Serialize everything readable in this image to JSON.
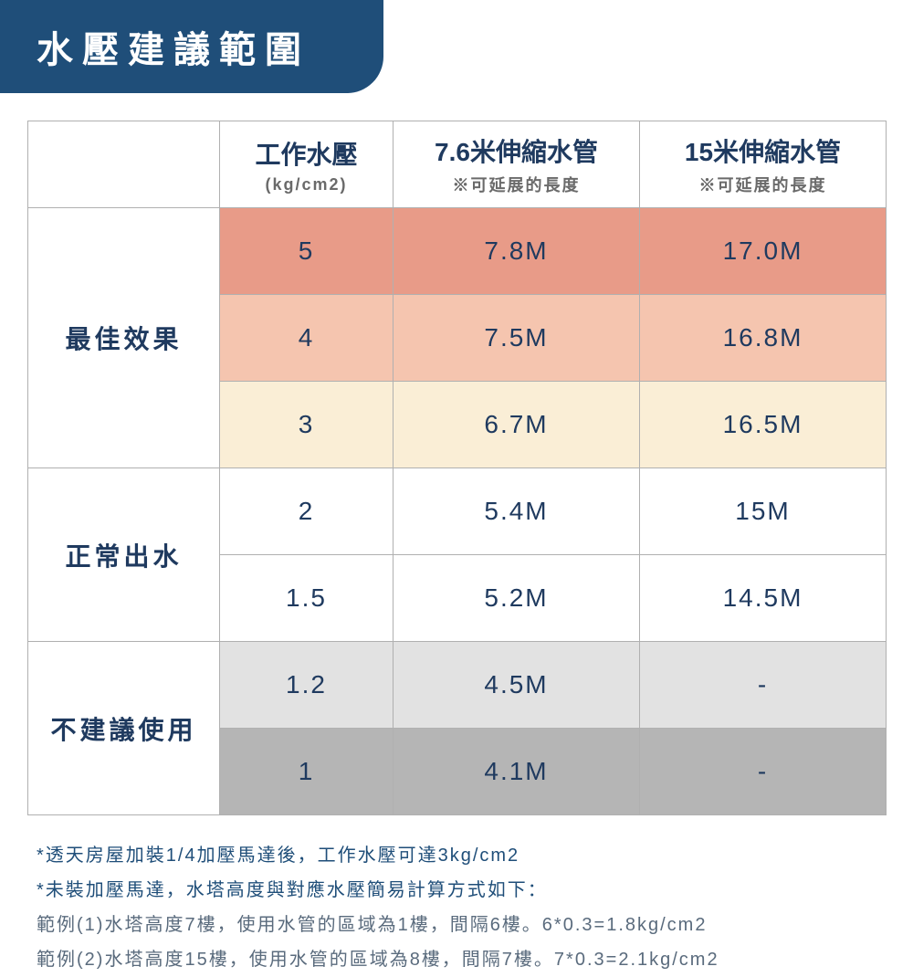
{
  "title": "水壓建議範圍",
  "headers": {
    "col1_main": "工作水壓",
    "col1_sub": "(kg/cm2)",
    "col2_main": "7.6米伸縮水管",
    "col2_sub": "※可延展的長度",
    "col3_main": "15米伸縮水管",
    "col3_sub": "※可延展的長度"
  },
  "groups": [
    {
      "label": "最佳效果",
      "rowspan": 3,
      "bg_label": "#ffffff",
      "rows": [
        {
          "bg": "bg-r1",
          "pressure": "5",
          "len76": "7.8M",
          "len15": "17.0M"
        },
        {
          "bg": "bg-r2",
          "pressure": "4",
          "len76": "7.5M",
          "len15": "16.8M"
        },
        {
          "bg": "bg-r3",
          "pressure": "3",
          "len76": "6.7M",
          "len15": "16.5M"
        }
      ]
    },
    {
      "label": "正常出水",
      "rowspan": 2,
      "bg_label": "#ffffff",
      "rows": [
        {
          "bg": "bg-r4",
          "pressure": "2",
          "len76": "5.4M",
          "len15": "15M"
        },
        {
          "bg": "bg-r5",
          "pressure": "1.5",
          "len76": "5.2M",
          "len15": "14.5M"
        }
      ]
    },
    {
      "label": "不建議使用",
      "rowspan": 2,
      "bg_label": "#ffffff",
      "rows": [
        {
          "bg": "bg-r6",
          "pressure": "1.2",
          "len76": "4.5M",
          "len15": "-"
        },
        {
          "bg": "bg-r7",
          "pressure": "1",
          "len76": "4.1M",
          "len15": "-"
        }
      ]
    }
  ],
  "notes": {
    "n1": "*透天房屋加裝1/4加壓馬達後，工作水壓可達3kg/cm2",
    "n2": "*未裝加壓馬達，水塔高度與對應水壓簡易計算方式如下：",
    "ex1": "範例(1)水塔高度7樓，使用水管的區域為1樓，間隔6樓。6*0.3=1.8kg/cm2",
    "ex2": "範例(2)水塔高度15樓，使用水管的區域為8樓，間隔7樓。7*0.3=2.1kg/cm2"
  },
  "styling": {
    "title_bg": "#1f4e79",
    "title_color": "#ffffff",
    "border_color": "#b0b0b0",
    "text_color": "#1f3a5f",
    "row_colors": [
      "#e89b88",
      "#f5c5af",
      "#faeed6",
      "#ffffff",
      "#ffffff",
      "#e2e2e2",
      "#b5b5b5"
    ],
    "title_fontsize": 40,
    "header_main_fontsize": 28,
    "header_sub_fontsize": 18,
    "cell_fontsize": 28,
    "notes_fontsize": 20
  }
}
